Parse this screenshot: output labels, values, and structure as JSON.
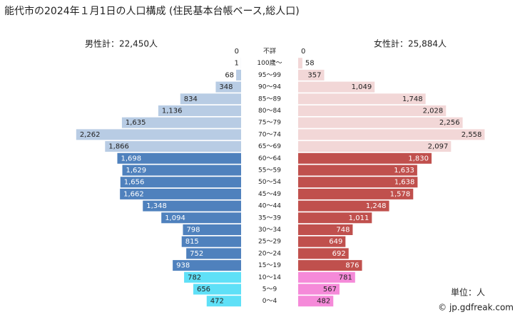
{
  "chart_data": {
    "type": "pyramid",
    "title": "能代市の2024年１月1日の人口構成 (住民基本台帳ベース,総人口)",
    "male_total": "男性計：22,450人",
    "female_total": "女性計：25,884人",
    "unit": "単位：人",
    "credit": "© jp.gdfreak.com",
    "categories": [
      "不詳",
      "100歳～",
      "95～99",
      "90～94",
      "85～89",
      "80～84",
      "75～79",
      "70～74",
      "65～69",
      "60～64",
      "55～59",
      "50～54",
      "45～49",
      "40～44",
      "35～39",
      "30～34",
      "25～29",
      "20～24",
      "15～19",
      "10～14",
      "5～9",
      "0～4"
    ],
    "series": [
      {
        "name": "男性",
        "side": "left",
        "values": [
          0,
          1,
          68,
          348,
          834,
          1136,
          1635,
          2262,
          1866,
          1698,
          1629,
          1656,
          1662,
          1348,
          1094,
          798,
          815,
          752,
          938,
          782,
          656,
          472
        ],
        "value_labels": [
          "0",
          "1",
          "68",
          "348",
          "834",
          "1,136",
          "1,635",
          "2,262",
          "1,866",
          "1,698",
          "1,629",
          "1,656",
          "1,662",
          "1,348",
          "1,094",
          "798",
          "815",
          "752",
          "938",
          "782",
          "656",
          "472"
        ],
        "colors": [
          "#b8cce4",
          "#b8cce4",
          "#b8cce4",
          "#b8cce4",
          "#b8cce4",
          "#b8cce4",
          "#b8cce4",
          "#b8cce4",
          "#b8cce4",
          "#4f81bd",
          "#4f81bd",
          "#4f81bd",
          "#4f81bd",
          "#4f81bd",
          "#4f81bd",
          "#4f81bd",
          "#4f81bd",
          "#4f81bd",
          "#4f81bd",
          "#5fe0f7",
          "#5fe0f7",
          "#5fe0f7"
        ]
      },
      {
        "name": "女性",
        "side": "right",
        "values": [
          0,
          58,
          357,
          1049,
          1748,
          2028,
          2256,
          2558,
          2097,
          1830,
          1633,
          1638,
          1578,
          1248,
          1011,
          748,
          649,
          692,
          876,
          781,
          567,
          482
        ],
        "value_labels": [
          "0",
          "58",
          "357",
          "1,049",
          "1,748",
          "2,028",
          "2,256",
          "2,558",
          "2,097",
          "1,830",
          "1,633",
          "1,638",
          "1,578",
          "1,248",
          "1,011",
          "748",
          "649",
          "692",
          "876",
          "781",
          "567",
          "482"
        ],
        "colors": [
          "#f2d7d7",
          "#f2d7d7",
          "#f2d7d7",
          "#f2d7d7",
          "#f2d7d7",
          "#f2d7d7",
          "#f2d7d7",
          "#f2d7d7",
          "#f2d7d7",
          "#c0504d",
          "#c0504d",
          "#c0504d",
          "#c0504d",
          "#c0504d",
          "#c0504d",
          "#c0504d",
          "#c0504d",
          "#c0504d",
          "#c0504d",
          "#f58ad9",
          "#f58ad9",
          "#f58ad9"
        ]
      }
    ]
  }
}
